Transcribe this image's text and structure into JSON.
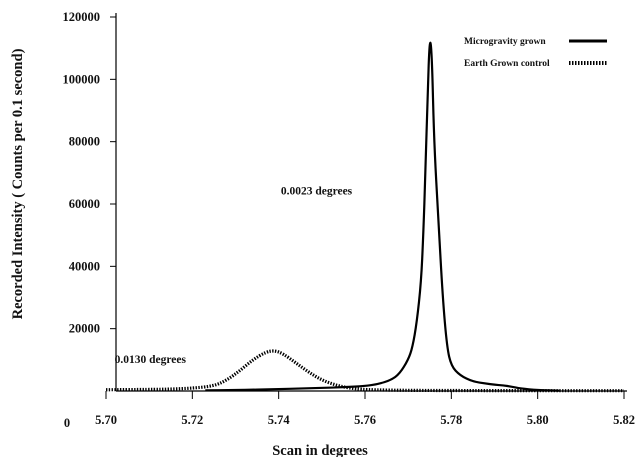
{
  "chart_data": {
    "type": "line",
    "title": "",
    "xlabel": "Scan in degrees",
    "ylabel": "Recorded Intensity ( Counts per 0.1 second)",
    "xlim": [
      5.7,
      5.82
    ],
    "ylim": [
      0,
      120000
    ],
    "x_ticks": [
      "5.70",
      "5.72",
      "5.74",
      "5.76",
      "5.78",
      "5.80",
      "5.82"
    ],
    "y_ticks": [
      "20000",
      "40000",
      "60000",
      "80000",
      "100000",
      "120000"
    ],
    "y_zero_label": "0",
    "grid": false,
    "legend_position": "top-right",
    "series": [
      {
        "name": "Microgravity grown",
        "style": "solid",
        "color": "#000000",
        "x": [
          5.723,
          5.73,
          5.74,
          5.745,
          5.75,
          5.755,
          5.76,
          5.763,
          5.766,
          5.768,
          5.77,
          5.771,
          5.772,
          5.773,
          5.7735,
          5.774,
          5.7745,
          5.775,
          5.7755,
          5.776,
          5.777,
          5.778,
          5.779,
          5.78,
          5.782,
          5.785,
          5.788,
          5.79,
          5.792,
          5.794,
          5.796,
          5.8,
          5.805
        ],
        "y": [
          200,
          300,
          600,
          800,
          1000,
          1200,
          1600,
          2200,
          3500,
          5500,
          10000,
          14000,
          22000,
          35000,
          50000,
          70000,
          95000,
          114000,
          108000,
          80000,
          55000,
          30000,
          14000,
          8000,
          5000,
          3000,
          2400,
          2000,
          1800,
          1400,
          800,
          300,
          100
        ]
      },
      {
        "name": "Earth Grown control",
        "style": "dotted",
        "color": "#000000",
        "x": [
          5.7,
          5.71,
          5.715,
          5.72,
          5.725,
          5.728,
          5.731,
          5.734,
          5.737,
          5.739,
          5.741,
          5.744,
          5.747,
          5.75,
          5.753,
          5.756,
          5.76,
          5.77,
          5.78,
          5.8,
          5.82
        ],
        "y": [
          400,
          500,
          600,
          900,
          1600,
          3500,
          6500,
          10000,
          12500,
          13000,
          12000,
          9000,
          6000,
          3500,
          2000,
          1000,
          400,
          200,
          150,
          100,
          100
        ]
      }
    ],
    "annotations": [
      {
        "text": "0.0023 degrees",
        "x": 5.7405,
        "y": 63000
      },
      {
        "text": "0.0130 degrees",
        "x": 5.702,
        "y": 9000
      }
    ]
  }
}
